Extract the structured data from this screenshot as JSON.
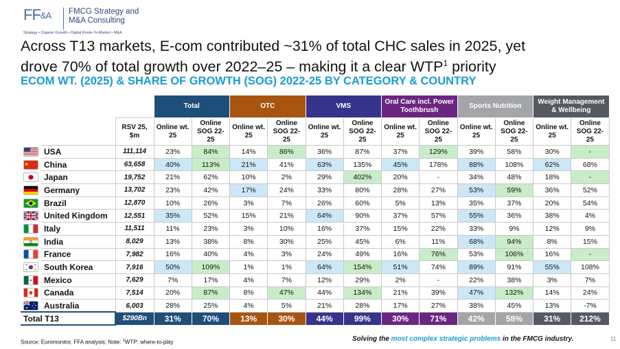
{
  "logo": {
    "mark": "FF",
    "mark_amp": "&A",
    "name_line1": "FMCG Strategy and",
    "name_line2": "M&A Consulting",
    "tagline": "Strategy • Organic Growth • Digital Route-To-Market • M&A"
  },
  "title": {
    "line1": "Across T13 markets, E-com contributed ~31% of total CHC sales in 2025, yet",
    "line2_pre": "drove 70% of total growth over 2022–25 – making it a clear WTP",
    "line2_sup": "1",
    "line2_post": " priority"
  },
  "subtitle": "ECOM WT. (2025) & SHARE OF GROWTH (SOG) 2022-25 BY CATEGORY & COUNTRY",
  "table": {
    "groups": [
      {
        "label": "Total",
        "color": "#1f4e79"
      },
      {
        "label": "OTC",
        "color": "#a85411"
      },
      {
        "label": "VMS",
        "color": "#35338a"
      },
      {
        "label": "Oral Care incl. Power Toothbrush",
        "color": "#6a2680"
      },
      {
        "label": "Sports Nutrition",
        "color": "#a3a5a8"
      },
      {
        "label": "Weight Management & Wellbeing",
        "color": "#555a62"
      }
    ],
    "subheaders": {
      "rsv": "RSV 25, $m",
      "wt": "Online wt. 25",
      "sog": "Online SOG 22-25"
    },
    "rows": [
      {
        "flag": "usa",
        "country": "USA",
        "rsv": "111,114",
        "cells": [
          [
            "23%",
            ""
          ],
          [
            "84%",
            "g"
          ],
          [
            "14%",
            ""
          ],
          [
            "86%",
            "g"
          ],
          [
            "36%",
            ""
          ],
          [
            "87%",
            ""
          ],
          [
            "37%",
            ""
          ],
          [
            "129%",
            "g"
          ],
          [
            "39%",
            ""
          ],
          [
            "58%",
            ""
          ],
          [
            "30%",
            ""
          ],
          [
            "-",
            "g"
          ]
        ]
      },
      {
        "flag": "china",
        "country": "China",
        "rsv": "63,658",
        "cells": [
          [
            "40%",
            "b"
          ],
          [
            "113%",
            "g"
          ],
          [
            "21%",
            "b"
          ],
          [
            "41%",
            ""
          ],
          [
            "63%",
            "b"
          ],
          [
            "135%",
            ""
          ],
          [
            "45%",
            "b"
          ],
          [
            "178%",
            ""
          ],
          [
            "88%",
            "b"
          ],
          [
            "108%",
            ""
          ],
          [
            "62%",
            "b"
          ],
          [
            "68%",
            ""
          ]
        ]
      },
      {
        "flag": "japan",
        "country": "Japan",
        "rsv": "19,752",
        "cells": [
          [
            "21%",
            ""
          ],
          [
            "62%",
            ""
          ],
          [
            "10%",
            ""
          ],
          [
            "2%",
            ""
          ],
          [
            "29%",
            ""
          ],
          [
            "402%",
            "g"
          ],
          [
            "20%",
            ""
          ],
          [
            "-",
            ""
          ],
          [
            "34%",
            ""
          ],
          [
            "48%",
            ""
          ],
          [
            "18%",
            ""
          ],
          [
            "-",
            "g"
          ]
        ]
      },
      {
        "flag": "germany",
        "country": "Germany",
        "rsv": "13,702",
        "cells": [
          [
            "23%",
            ""
          ],
          [
            "42%",
            ""
          ],
          [
            "17%",
            "b"
          ],
          [
            "24%",
            ""
          ],
          [
            "33%",
            ""
          ],
          [
            "80%",
            ""
          ],
          [
            "28%",
            ""
          ],
          [
            "27%",
            ""
          ],
          [
            "53%",
            "b"
          ],
          [
            "59%",
            "g"
          ],
          [
            "36%",
            ""
          ],
          [
            "52%",
            ""
          ]
        ]
      },
      {
        "flag": "brazil",
        "country": "Brazil",
        "rsv": "12,870",
        "cells": [
          [
            "10%",
            ""
          ],
          [
            "26%",
            ""
          ],
          [
            "3%",
            ""
          ],
          [
            "7%",
            ""
          ],
          [
            "26%",
            ""
          ],
          [
            "60%",
            ""
          ],
          [
            "5%",
            ""
          ],
          [
            "13%",
            ""
          ],
          [
            "35%",
            ""
          ],
          [
            "37%",
            ""
          ],
          [
            "20%",
            ""
          ],
          [
            "54%",
            ""
          ]
        ]
      },
      {
        "flag": "uk",
        "country": "United Kingdom",
        "rsv": "12,551",
        "cells": [
          [
            "35%",
            "b"
          ],
          [
            "52%",
            ""
          ],
          [
            "15%",
            ""
          ],
          [
            "21%",
            ""
          ],
          [
            "64%",
            "b"
          ],
          [
            "90%",
            ""
          ],
          [
            "37%",
            ""
          ],
          [
            "57%",
            ""
          ],
          [
            "55%",
            "b"
          ],
          [
            "36%",
            ""
          ],
          [
            "38%",
            ""
          ],
          [
            "4%",
            ""
          ]
        ]
      },
      {
        "flag": "italy",
        "country": "Italy",
        "rsv": "11,511",
        "cells": [
          [
            "11%",
            ""
          ],
          [
            "23%",
            ""
          ],
          [
            "3%",
            ""
          ],
          [
            "10%",
            ""
          ],
          [
            "16%",
            ""
          ],
          [
            "37%",
            ""
          ],
          [
            "15%",
            ""
          ],
          [
            "22%",
            ""
          ],
          [
            "33%",
            ""
          ],
          [
            "9%",
            ""
          ],
          [
            "12%",
            ""
          ],
          [
            "9%",
            ""
          ]
        ]
      },
      {
        "flag": "india",
        "country": "India",
        "rsv": "8,029",
        "cells": [
          [
            "13%",
            ""
          ],
          [
            "38%",
            ""
          ],
          [
            "8%",
            ""
          ],
          [
            "30%",
            ""
          ],
          [
            "25%",
            ""
          ],
          [
            "45%",
            ""
          ],
          [
            "6%",
            ""
          ],
          [
            "11%",
            ""
          ],
          [
            "68%",
            "b"
          ],
          [
            "94%",
            "g"
          ],
          [
            "8%",
            ""
          ],
          [
            "15%",
            ""
          ]
        ]
      },
      {
        "flag": "france",
        "country": "France",
        "rsv": "7,982",
        "cells": [
          [
            "16%",
            ""
          ],
          [
            "40%",
            ""
          ],
          [
            "4%",
            ""
          ],
          [
            "3%",
            ""
          ],
          [
            "24%",
            ""
          ],
          [
            "49%",
            ""
          ],
          [
            "16%",
            ""
          ],
          [
            "76%",
            "g"
          ],
          [
            "53%",
            ""
          ],
          [
            "106%",
            "g"
          ],
          [
            "16%",
            ""
          ],
          [
            "-",
            "g"
          ]
        ]
      },
      {
        "flag": "korea",
        "country": "South Korea",
        "rsv": "7,916",
        "cells": [
          [
            "50%",
            "b"
          ],
          [
            "109%",
            "g"
          ],
          [
            "1%",
            ""
          ],
          [
            "1%",
            ""
          ],
          [
            "64%",
            "b"
          ],
          [
            "154%",
            "g"
          ],
          [
            "51%",
            "b"
          ],
          [
            "74%",
            ""
          ],
          [
            "89%",
            "b"
          ],
          [
            "91%",
            ""
          ],
          [
            "55%",
            "b"
          ],
          [
            "108%",
            ""
          ]
        ]
      },
      {
        "flag": "mexico",
        "country": "Mexico",
        "rsv": "7,629",
        "cells": [
          [
            "7%",
            ""
          ],
          [
            "17%",
            ""
          ],
          [
            "4%",
            ""
          ],
          [
            "7%",
            ""
          ],
          [
            "12%",
            ""
          ],
          [
            "29%",
            ""
          ],
          [
            "2%",
            ""
          ],
          [
            "-",
            ""
          ],
          [
            "22%",
            ""
          ],
          [
            "38%",
            ""
          ],
          [
            "3%",
            ""
          ],
          [
            "7%",
            ""
          ]
        ]
      },
      {
        "flag": "canada",
        "country": "Canada",
        "rsv": "7,514",
        "cells": [
          [
            "20%",
            ""
          ],
          [
            "87%",
            "g"
          ],
          [
            "8%",
            ""
          ],
          [
            "47%",
            "g"
          ],
          [
            "44%",
            ""
          ],
          [
            "134%",
            "g"
          ],
          [
            "21%",
            ""
          ],
          [
            "39%",
            ""
          ],
          [
            "47%",
            "b"
          ],
          [
            "132%",
            "g"
          ],
          [
            "14%",
            ""
          ],
          [
            "24%",
            ""
          ]
        ]
      },
      {
        "flag": "australia",
        "country": "Australia",
        "rsv": "6,003",
        "cells": [
          [
            "28%",
            ""
          ],
          [
            "25%",
            ""
          ],
          [
            "4%",
            ""
          ],
          [
            "5%",
            ""
          ],
          [
            "21%",
            ""
          ],
          [
            "28%",
            ""
          ],
          [
            "17%",
            ""
          ],
          [
            "27%",
            ""
          ],
          [
            "38%",
            ""
          ],
          [
            "45%",
            ""
          ],
          [
            "13%",
            ""
          ],
          [
            "-7%",
            ""
          ]
        ]
      }
    ],
    "total": {
      "label": "Total T13",
      "rsv": "$290Bn",
      "cells": [
        "31%",
        "70%",
        "13%",
        "30%",
        "44%",
        "99%",
        "30%",
        "71%",
        "42%",
        "58%",
        "31%",
        "212%"
      ]
    }
  },
  "footer": {
    "source_pre": "Source: Euromonitor, FFA analysis; Note: ",
    "source_sup": "1",
    "source_post": "WTP: where-to-play",
    "tagline_pre": "Solving the ",
    "tagline_hl": "most complex strategic problems",
    "tagline_post": " in the FMCG industry.",
    "page": "11"
  }
}
